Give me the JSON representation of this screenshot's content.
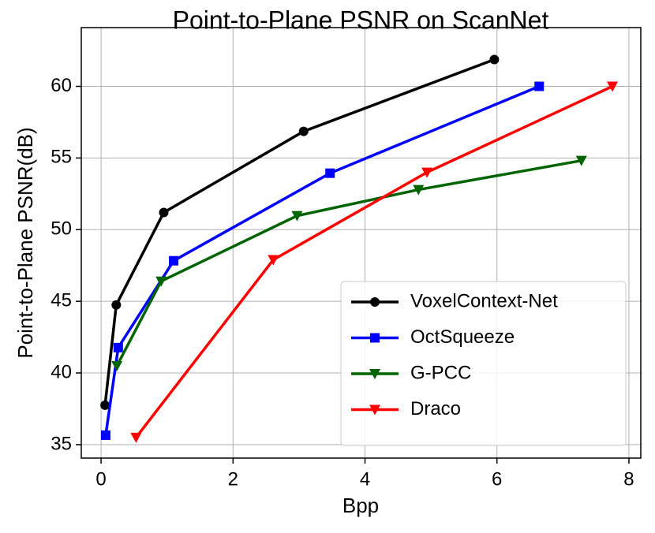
{
  "chart_data": {
    "type": "line",
    "title": "Point-to-Plane PSNR on ScanNet",
    "x_label": "Bpp",
    "y_label": "Point-to-Plane PSNR(dB)",
    "xlim": [
      -0.3,
      8.18
    ],
    "ylim": [
      34.06,
      64.1
    ],
    "xticks": [
      0,
      2,
      4,
      6,
      8
    ],
    "yticks": [
      35,
      40,
      45,
      50,
      55,
      60
    ],
    "grid": true,
    "legend_loc": "lower right",
    "series": [
      {
        "name": "VoxelContext-Net",
        "color": "#000000",
        "marker": "circle",
        "x": [
          0.06,
          0.23,
          0.95,
          3.07,
          5.96
        ],
        "values": [
          37.75,
          44.75,
          51.2,
          56.86,
          61.87
        ]
      },
      {
        "name": "OctSqueeze",
        "color": "#0000ff",
        "marker": "square",
        "x": [
          0.07,
          0.26,
          1.1,
          3.47,
          6.64
        ],
        "values": [
          35.66,
          41.77,
          47.83,
          53.94,
          60.0
        ]
      },
      {
        "name": "G-PCC",
        "color": "#006400",
        "marker": "triangle-down",
        "x": [
          0.24,
          0.91,
          2.97,
          4.81,
          7.28
        ],
        "values": [
          40.5,
          46.4,
          50.97,
          52.79,
          54.82
        ]
      },
      {
        "name": "Draco",
        "color": "#ff0000",
        "marker": "triangle-down",
        "x": [
          0.53,
          2.61,
          4.94,
          7.75
        ],
        "values": [
          35.5,
          47.9,
          54.0,
          60.0
        ]
      }
    ]
  }
}
